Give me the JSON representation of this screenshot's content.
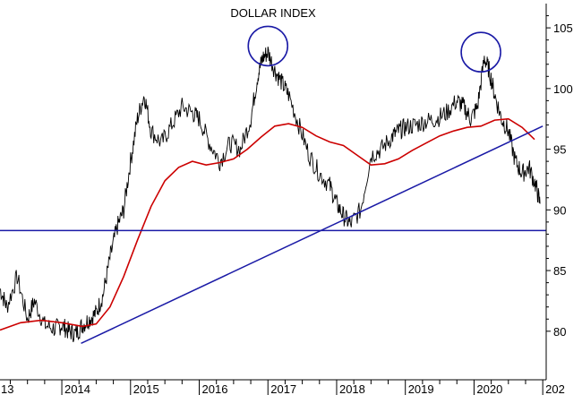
{
  "chart_data": {
    "type": "line",
    "title": "DOLLAR INDEX",
    "ylim": [
      76,
      107
    ],
    "y_ticks": [
      80,
      85,
      90,
      95,
      100,
      105
    ],
    "x_ticks": [
      "13",
      "2014",
      "2015",
      "2016",
      "2017",
      "2018",
      "2019",
      "2020",
      "202"
    ],
    "x_tick_years": [
      2013.1,
      2014,
      2015,
      2016,
      2017,
      2018,
      2019,
      2020,
      2021
    ],
    "xlim": [
      2013.1,
      2021.05
    ],
    "grid": false,
    "colors": {
      "price": "#000000",
      "moving_average": "#cc0000",
      "trend_lines": "#1a1aa6",
      "circles": "#1a1aa6"
    },
    "price_series": {
      "x": [
        2013.1,
        2013.2,
        2013.35,
        2013.5,
        2013.6,
        2013.75,
        2013.9,
        2014.0,
        2014.1,
        2014.2,
        2014.3,
        2014.4,
        2014.5,
        2014.6,
        2014.7,
        2014.8,
        2014.9,
        2015.0,
        2015.1,
        2015.2,
        2015.3,
        2015.45,
        2015.6,
        2015.75,
        2015.9,
        2016.0,
        2016.15,
        2016.3,
        2016.45,
        2016.6,
        2016.75,
        2016.85,
        2016.92,
        2017.0,
        2017.1,
        2017.2,
        2017.3,
        2017.45,
        2017.6,
        2017.75,
        2017.9,
        2018.0,
        2018.1,
        2018.2,
        2018.35,
        2018.5,
        2018.65,
        2018.8,
        2018.9,
        2019.0,
        2019.15,
        2019.3,
        2019.45,
        2019.6,
        2019.75,
        2019.85,
        2019.95,
        2020.05,
        2020.15,
        2020.22,
        2020.3,
        2020.4,
        2020.5,
        2020.6,
        2020.7,
        2020.8,
        2020.9,
        2020.96
      ],
      "y": [
        83.5,
        82.0,
        84.5,
        81.0,
        82.5,
        80.5,
        80.2,
        80.5,
        80.0,
        79.8,
        80.5,
        81.0,
        81.5,
        83.0,
        86.0,
        88.5,
        90.0,
        94.0,
        97.5,
        99.5,
        96.5,
        95.5,
        97.0,
        98.5,
        98.0,
        97.5,
        95.5,
        94.0,
        95.5,
        95.0,
        97.5,
        101.0,
        102.5,
        103.0,
        101.5,
        100.5,
        99.5,
        97.0,
        94.5,
        93.0,
        92.0,
        90.5,
        89.5,
        88.8,
        90.0,
        94.5,
        95.0,
        96.0,
        96.5,
        96.8,
        97.0,
        97.3,
        97.5,
        98.0,
        99.0,
        98.5,
        97.5,
        98.5,
        102.5,
        101.5,
        99.5,
        97.5,
        96.5,
        94.0,
        93.0,
        93.5,
        92.0,
        90.5
      ]
    },
    "moving_average_series": {
      "x": [
        2013.1,
        2013.4,
        2013.7,
        2014.0,
        2014.3,
        2014.5,
        2014.7,
        2014.9,
        2015.1,
        2015.3,
        2015.5,
        2015.7,
        2015.9,
        2016.1,
        2016.3,
        2016.5,
        2016.7,
        2016.9,
        2017.1,
        2017.3,
        2017.5,
        2017.7,
        2017.9,
        2018.1,
        2018.3,
        2018.5,
        2018.7,
        2018.9,
        2019.1,
        2019.3,
        2019.5,
        2019.7,
        2019.9,
        2020.1,
        2020.3,
        2020.5,
        2020.7,
        2020.88
      ],
      "y": [
        80.1,
        80.7,
        80.9,
        80.7,
        80.4,
        80.6,
        82.0,
        84.5,
        87.5,
        90.3,
        92.4,
        93.5,
        94.0,
        93.7,
        93.9,
        94.2,
        95.0,
        96.0,
        96.9,
        97.1,
        96.8,
        96.1,
        95.6,
        95.3,
        94.5,
        93.7,
        93.8,
        94.2,
        94.9,
        95.5,
        96.1,
        96.5,
        96.8,
        96.9,
        97.4,
        97.5,
        96.8,
        95.8
      ]
    },
    "trend_lines": [
      {
        "x": [
          2014.28,
          2021.0
        ],
        "y": [
          79.0,
          96.9
        ]
      },
      {
        "x": [
          2013.1,
          2021.05
        ],
        "y": [
          88.3,
          88.3
        ]
      }
    ],
    "circled_peaks": [
      {
        "x": 2017.0,
        "y": 103.5
      },
      {
        "x": 2020.1,
        "y": 103.0
      }
    ]
  }
}
